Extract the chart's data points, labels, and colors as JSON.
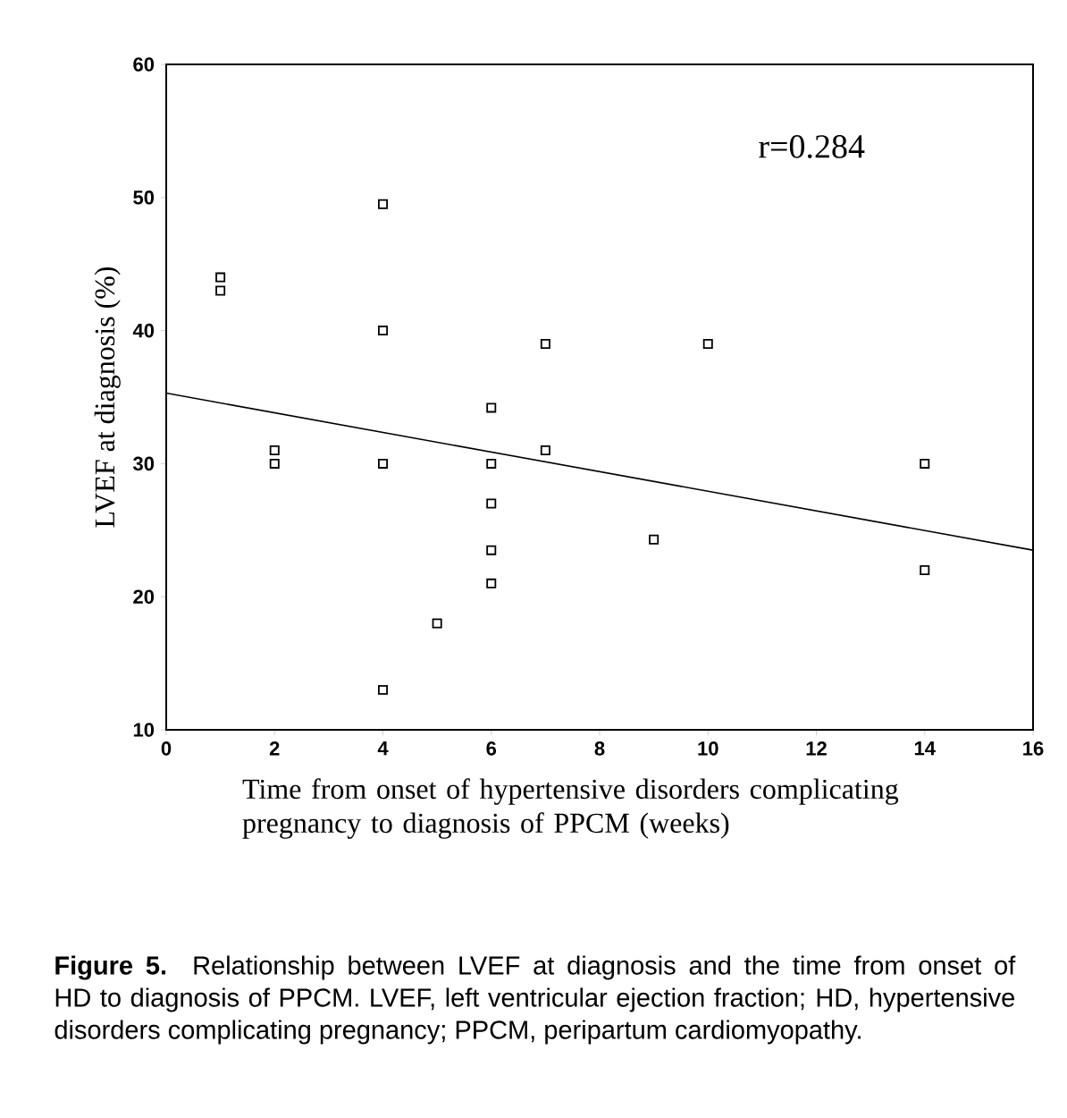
{
  "chart_data": {
    "type": "scatter",
    "xlabel": "Time from onset of hypertensive disorders complicating pregnancy to diagnosis of PPCM (weeks)",
    "ylabel": "LVEF at diagnosis (%)",
    "annotations": [
      "r=0.284",
      "**Figure 5.** Relationship between LVEF at diagnosis and the time from onset of HD to diagnosis of PPCM. LVEF, left ventricular ejection fraction; HD, hypertensive disorders complicating pregnancy; PPCM, peripartum cardiomyopathy."
    ],
    "marker": "square",
    "grid": false,
    "xlim": [
      0,
      16
    ],
    "ylim": [
      10,
      60
    ],
    "xticks": [
      0,
      2,
      4,
      6,
      8,
      10,
      12,
      14,
      16
    ],
    "yticks": [
      10,
      20,
      30,
      40,
      50,
      60
    ],
    "series": [
      {
        "color": "#000000",
        "x": [
          1,
          1,
          2,
          2,
          4,
          4,
          4,
          4,
          5,
          6,
          6,
          6,
          6,
          6,
          7,
          7,
          9,
          10,
          14,
          14
        ],
        "values": [
          44,
          43,
          31,
          30,
          49.5,
          40,
          30,
          13,
          18,
          34.2,
          30,
          27,
          23.5,
          21,
          39,
          31,
          24.3,
          39,
          30,
          22
        ]
      },
      {
        "type": "line",
        "marker": "none",
        "color": "#000000",
        "x": [
          0,
          16
        ],
        "values": [
          35.3,
          23.5
        ]
      }
    ]
  }
}
